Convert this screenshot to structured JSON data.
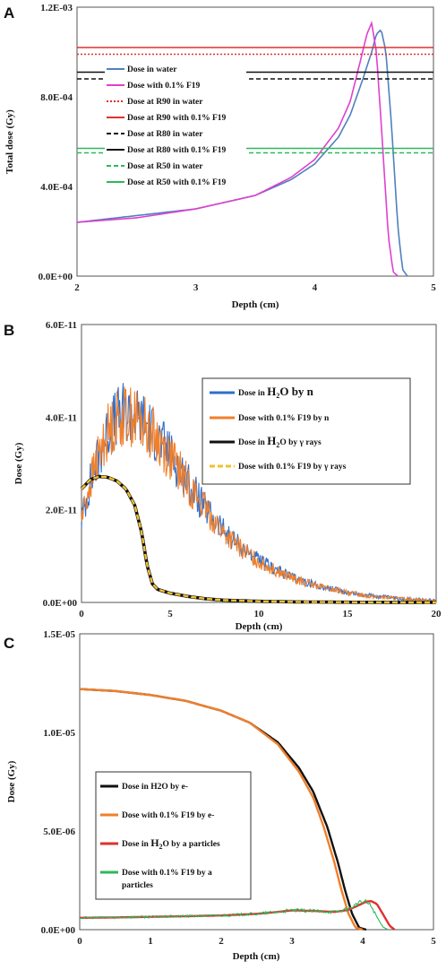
{
  "chart_data": [
    {
      "type": "line",
      "panel": "A",
      "xlabel": "Depth (cm)",
      "ylabel": "Total dose (Gy)",
      "xlim": [
        2,
        5
      ],
      "ylim": [
        0,
        0.0012
      ],
      "xticks": [
        "2",
        "3",
        "4",
        "5"
      ],
      "yticks": [
        "0.0E+00",
        "4.0E-04",
        "8.0E-04",
        "1.2E-03"
      ],
      "legend_position": "left-center",
      "series": [
        {
          "name": "Dose in water",
          "color": "#4f81bd",
          "style": "solid",
          "x": [
            2.0,
            2.5,
            3.0,
            3.5,
            3.8,
            4.0,
            4.2,
            4.3,
            4.4,
            4.48,
            4.52,
            4.56,
            4.6,
            4.65,
            4.7,
            4.74,
            4.78
          ],
          "y": [
            0.00024,
            0.00027,
            0.0003,
            0.00036,
            0.00043,
            0.0005,
            0.00062,
            0.00072,
            0.00087,
            0.001,
            0.00108,
            0.0011,
            0.001,
            0.00065,
            0.00022,
            3e-05,
            0.0
          ]
        },
        {
          "name": "Dose with 0.1% F19",
          "color": "#e040d0",
          "style": "solid",
          "x": [
            2.0,
            2.5,
            3.0,
            3.5,
            3.8,
            4.0,
            4.2,
            4.3,
            4.38,
            4.44,
            4.48,
            4.52,
            4.57,
            4.62,
            4.66,
            4.7
          ],
          "y": [
            0.00024,
            0.00026,
            0.0003,
            0.00036,
            0.00044,
            0.00052,
            0.00066,
            0.00078,
            0.00095,
            0.00108,
            0.00113,
            0.001,
            0.0006,
            0.00018,
            2e-05,
            0.0
          ]
        },
        {
          "name": "Dose at R90 in water",
          "color": "#e03030",
          "style": "dotted",
          "x": [
            2,
            5
          ],
          "y": [
            0.00099,
            0.00099
          ]
        },
        {
          "name": "Dose at R90 with 0.1% F19",
          "color": "#e03030",
          "style": "solid",
          "x": [
            2,
            5
          ],
          "y": [
            0.00102,
            0.00102
          ]
        },
        {
          "name": "Dose at R80 in water",
          "color": "#111111",
          "style": "dashed",
          "x": [
            2,
            5
          ],
          "y": [
            0.00088,
            0.00088
          ]
        },
        {
          "name": "Dose at R80 with 0.1% F19",
          "color": "#111111",
          "style": "solid",
          "x": [
            2,
            5
          ],
          "y": [
            0.00091,
            0.00091
          ]
        },
        {
          "name": "Dose at R50 in water",
          "color": "#2db85a",
          "style": "dashed",
          "x": [
            2,
            5
          ],
          "y": [
            0.00055,
            0.00055
          ]
        },
        {
          "name": "Dose at R50 with 0.1% F19",
          "color": "#2db85a",
          "style": "solid",
          "x": [
            2,
            5
          ],
          "y": [
            0.00057,
            0.00057
          ]
        }
      ]
    },
    {
      "type": "line",
      "panel": "B",
      "xlabel": "Depth (cm)",
      "ylabel": "Dose  (Gy)",
      "xlim": [
        0,
        20
      ],
      "ylim": [
        0,
        6e-11
      ],
      "xticks": [
        "0",
        "5",
        "10",
        "15",
        "20"
      ],
      "yticks": [
        "0.0E+00",
        "2.0E-11",
        "4.0E-11",
        "6.0E-11"
      ],
      "legend_position": "top-right",
      "series": [
        {
          "name": "Dose in H2O by n",
          "label_main": "Dose in ",
          "label_formula": "H",
          "label_sub": "2",
          "label_tail": "O by n",
          "color": "#2f6fce",
          "style": "noisy",
          "x": [
            0,
            0.5,
            1,
            1.5,
            2,
            2.5,
            3,
            3.5,
            4,
            5,
            6,
            7,
            8,
            9,
            10,
            11,
            12,
            13,
            14,
            15,
            16,
            17,
            18,
            19,
            20
          ],
          "y": [
            1.8e-11,
            2.6e-11,
            3.2e-11,
            3.7e-11,
            4e-11,
            4.1e-11,
            4.05e-11,
            3.9e-11,
            3.7e-11,
            3.2e-11,
            2.6e-11,
            2e-11,
            1.55e-11,
            1.2e-11,
            9e-12,
            7e-12,
            5.2e-12,
            4e-12,
            3e-12,
            2.2e-12,
            1.6e-12,
            1.2e-12,
            8e-13,
            6e-13,
            4e-13
          ]
        },
        {
          "name": "Dose with 0.1% F19 by n",
          "color": "#f07f2a",
          "style": "noisy",
          "x": [
            0,
            0.5,
            1,
            1.5,
            2,
            2.5,
            3,
            3.5,
            4,
            5,
            6,
            7,
            8,
            9,
            10,
            11,
            12,
            13,
            14,
            15,
            16,
            17,
            18,
            19,
            20
          ],
          "y": [
            1.8e-11,
            2.6e-11,
            3.2e-11,
            3.7e-11,
            3.95e-11,
            4.05e-11,
            4e-11,
            3.85e-11,
            3.65e-11,
            3.15e-11,
            2.55e-11,
            2e-11,
            1.5e-11,
            1.15e-11,
            8.8e-12,
            6.8e-12,
            5e-12,
            3.8e-12,
            2.9e-12,
            2.1e-12,
            1.5e-12,
            1.1e-12,
            8e-13,
            6e-13,
            4e-13
          ]
        },
        {
          "name": "Dose in H2O by γ rays",
          "label_main": "Dose in ",
          "label_formula": "H",
          "label_sub": "2",
          "label_tail": "O by γ rays",
          "color": "#111111",
          "style": "solid",
          "x": [
            0,
            0.5,
            1,
            1.5,
            2,
            2.5,
            3,
            3.4,
            3.7,
            4.0,
            4.3,
            5,
            6,
            7,
            8,
            10,
            12,
            15,
            20
          ],
          "y": [
            2.45e-11,
            2.65e-11,
            2.72e-11,
            2.7e-11,
            2.62e-11,
            2.45e-11,
            2.1e-11,
            1.5e-11,
            8e-12,
            4e-12,
            2.8e-12,
            2e-12,
            1.3e-12,
            8e-13,
            5e-13,
            2.5e-13,
            1.2e-13,
            5e-14,
            0.0
          ]
        },
        {
          "name": "Dose with 0.1% F19 by γ rays",
          "color": "#f2c12e",
          "style": "dashed",
          "x": [
            0,
            0.5,
            1,
            1.5,
            2,
            2.5,
            3,
            3.4,
            3.7,
            4.0,
            4.3,
            5,
            6,
            7,
            8,
            10,
            12,
            15,
            20
          ],
          "y": [
            2.45e-11,
            2.65e-11,
            2.72e-11,
            2.7e-11,
            2.62e-11,
            2.45e-11,
            2.1e-11,
            1.5e-11,
            8e-12,
            4e-12,
            2.8e-12,
            2e-12,
            1.3e-12,
            8e-13,
            5e-13,
            2.5e-13,
            1.2e-13,
            5e-14,
            0.0
          ]
        }
      ]
    },
    {
      "type": "line",
      "panel": "C",
      "xlabel": "Depth (cm)",
      "ylabel": "Dose  (Gy)",
      "xlim": [
        0,
        5
      ],
      "ylim": [
        0,
        1.5e-05
      ],
      "xticks": [
        "0",
        "1",
        "2",
        "3",
        "4",
        "5"
      ],
      "yticks": [
        "0.0E+00",
        "5.0E-06",
        "1.0E-05",
        "1.5E-05"
      ],
      "legend_position": "bottom-left",
      "series": [
        {
          "name": "Dose in H2O by e-",
          "color": "#111111",
          "style": "solid",
          "x": [
            0,
            0.5,
            1,
            1.5,
            2,
            2.4,
            2.8,
            3.1,
            3.3,
            3.5,
            3.65,
            3.75,
            3.85,
            3.95,
            4.05
          ],
          "y": [
            1.22e-05,
            1.21e-05,
            1.19e-05,
            1.16e-05,
            1.11e-05,
            1.05e-05,
            9.5e-06,
            8.2e-06,
            7e-06,
            5.2e-06,
            3.4e-06,
            2e-06,
            8e-07,
            1e-07,
            0.0
          ]
        },
        {
          "name": "Dose with 0.1% F19 by e-",
          "color": "#f07f2a",
          "style": "solid",
          "x": [
            0,
            0.5,
            1,
            1.5,
            2,
            2.4,
            2.8,
            3.1,
            3.3,
            3.45,
            3.6,
            3.7,
            3.8,
            3.9,
            4.0
          ],
          "y": [
            1.22e-05,
            1.21e-05,
            1.19e-05,
            1.16e-05,
            1.11e-05,
            1.05e-05,
            9.4e-06,
            8e-06,
            6.7e-06,
            5.2e-06,
            3.4e-06,
            2e-06,
            8e-07,
            1e-07,
            0.0
          ]
        },
        {
          "name": "Dose in H2O by a particles",
          "label_main": "Dose in  ",
          "label_formula": "H",
          "label_sub": "2",
          "label_tail": "O by a particles",
          "color": "#e03030",
          "style": "solid",
          "x": [
            0,
            0.5,
            1,
            1.5,
            2,
            2.5,
            2.8,
            3.0,
            3.3,
            3.6,
            3.8,
            3.95,
            4.05,
            4.12,
            4.2,
            4.3,
            4.38,
            4.45
          ],
          "y": [
            6e-07,
            6.2e-07,
            6.5e-07,
            6.8e-07,
            7.2e-07,
            8e-07,
            9e-07,
            9.8e-07,
            9.5e-07,
            9e-07,
            1e-06,
            1.25e-06,
            1.42e-06,
            1.45e-06,
            1.3e-06,
            7e-07,
            2e-07,
            0.0
          ]
        },
        {
          "name": "Dose with 0.1% F19 by a particles",
          "label_line1": "Dose with 0.1% F19 by a",
          "label_line2": "particles",
          "color": "#2db85a",
          "style": "noisy",
          "x": [
            0,
            0.5,
            1,
            1.5,
            2,
            2.5,
            2.8,
            3.0,
            3.3,
            3.6,
            3.8,
            3.92,
            4.0,
            4.05,
            4.12,
            4.2,
            4.28,
            4.36
          ],
          "y": [
            6e-07,
            6.2e-07,
            6.5e-07,
            6.8e-07,
            7.2e-07,
            8e-07,
            9e-07,
            9.8e-07,
            9.5e-07,
            9e-07,
            1.05e-06,
            1.3e-06,
            1.42e-06,
            1.4e-06,
            1.2e-06,
            6.5e-07,
            1.5e-07,
            0.0
          ]
        }
      ]
    }
  ]
}
